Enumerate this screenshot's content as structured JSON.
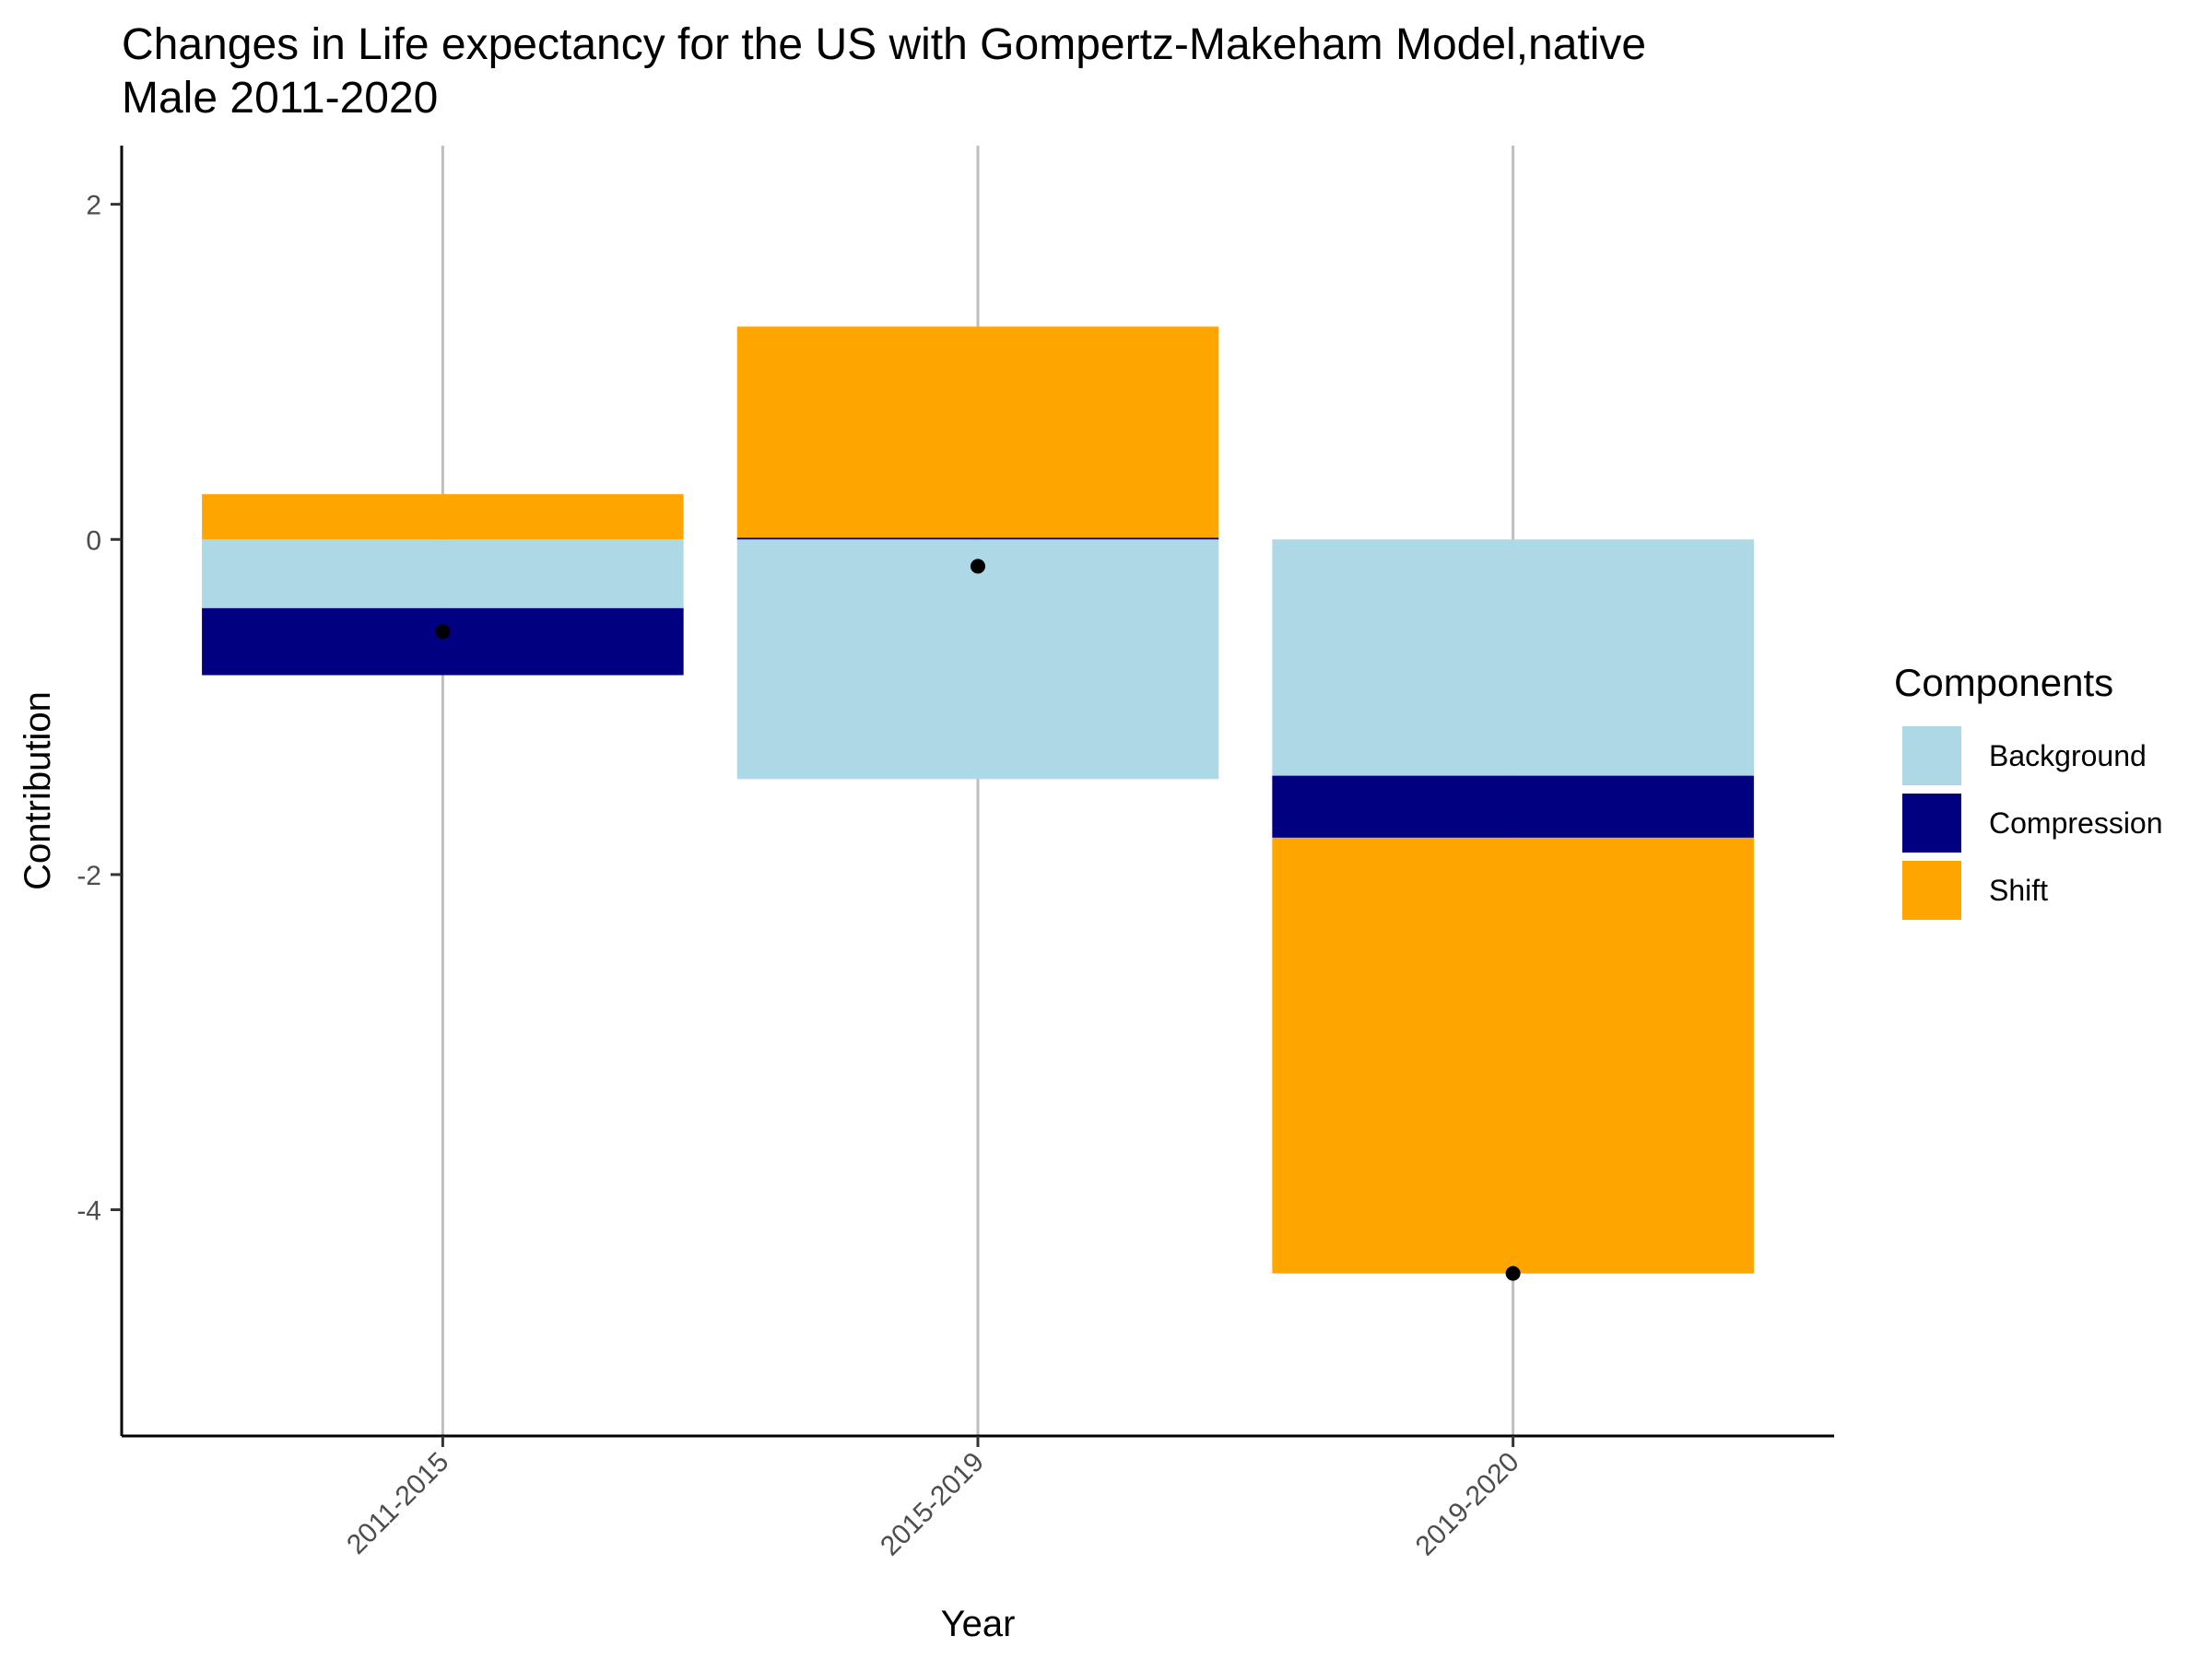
{
  "chart_data": {
    "type": "bar",
    "stacked": true,
    "title": "Changes in Life expectancy for the US with Gompertz-Makeham Model,native\n Male 2011-2020",
    "xlabel": "Year",
    "ylabel": "Contribution",
    "categories": [
      "2011-2015",
      "2015-2019",
      "2019-2020"
    ],
    "yticks": [
      -4,
      -2,
      0,
      2
    ],
    "ylim": [
      -5.35,
      2.35
    ],
    "grid": "vertical major lines at categories",
    "legend_title": "Components",
    "legend_placement": "right",
    "series": [
      {
        "name": "Background",
        "color": "#add8e6",
        "values": [
          -0.41,
          -1.43,
          -1.41
        ]
      },
      {
        "name": "Compression",
        "color": "#000080",
        "values": [
          -0.4,
          0.01,
          -0.37
        ]
      },
      {
        "name": "Shift",
        "color": "#ffa500",
        "values": [
          0.27,
          1.26,
          -2.6
        ]
      }
    ],
    "total_points": [
      -0.55,
      -0.16,
      -4.38
    ],
    "notes": "Positive contributions stack upward from 0, negative contributions stack downward from 0; black dots mark the total change."
  }
}
